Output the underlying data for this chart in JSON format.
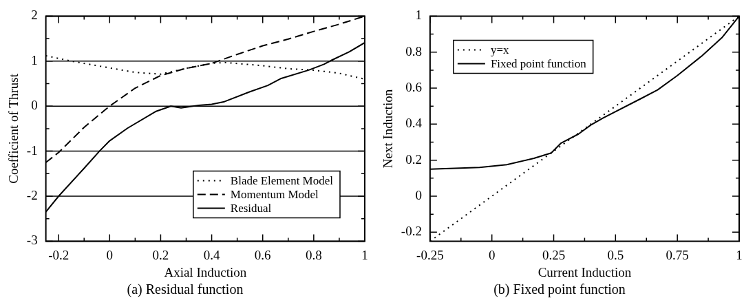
{
  "chart_data": [
    {
      "type": "line",
      "title": "(a) Residual function",
      "xlabel": "Axial Induction",
      "ylabel": "Coefficient of Thrust",
      "xlim": [
        -0.25,
        1
      ],
      "ylim": [
        -3,
        2
      ],
      "xticks": [
        -0.2,
        {
          "value": -0.1,
          "label": null
        },
        0,
        {
          "value": 0.1,
          "label": null
        },
        0.2,
        {
          "value": 0.3,
          "label": null
        },
        0.4,
        {
          "value": 0.5,
          "label": null
        },
        0.6,
        {
          "value": 0.7,
          "label": null
        },
        0.8,
        {
          "value": 0.9,
          "label": null
        },
        1
      ],
      "yticks": [
        -3,
        {
          "value": -2.5,
          "label": null
        },
        -2,
        {
          "value": -1.5,
          "label": null
        },
        -1,
        {
          "value": -0.5,
          "label": null
        },
        0,
        {
          "value": 0.5,
          "label": null
        },
        1,
        {
          "value": 1.5,
          "label": null
        },
        2
      ],
      "grid": "y",
      "legend": "bottom right",
      "marker": "none",
      "series": [
        {
          "name": "Blade Element Model",
          "color": "#000000",
          "line_style": "dotted",
          "x": [
            -0.25,
            -0.15,
            0,
            0.1,
            0.2,
            0.3,
            0.4,
            0.45,
            0.6,
            0.7,
            0.8,
            0.9,
            1
          ],
          "values": [
            1.12,
            1.0,
            0.85,
            0.75,
            0.71,
            0.84,
            0.95,
            0.97,
            0.9,
            0.83,
            0.8,
            0.73,
            0.6
          ]
        },
        {
          "name": "Momentum Model",
          "color": "#000000",
          "line_style": "dashed",
          "x": [
            -0.25,
            -0.2,
            -0.1,
            0,
            0.1,
            0.2,
            0.3,
            0.4,
            0.5,
            0.6,
            0.7,
            0.8,
            0.9,
            1
          ],
          "values": [
            -1.25,
            -1.03,
            -0.47,
            0,
            0.4,
            0.68,
            0.84,
            0.95,
            1.15,
            1.34,
            1.49,
            1.66,
            1.82,
            2
          ]
        },
        {
          "name": "Residual",
          "color": "#000000",
          "line_style": "solid",
          "x": [
            -0.25,
            -0.2,
            -0.1,
            -0.04,
            0,
            0.07,
            0.18,
            0.24,
            0.28,
            0.35,
            0.4,
            0.45,
            0.55,
            0.62,
            0.67,
            0.78,
            0.84,
            0.87,
            0.94,
            1
          ],
          "values": [
            -2.35,
            -2.0,
            -1.38,
            -1.0,
            -0.77,
            -0.49,
            -0.12,
            0,
            -0.04,
            0.02,
            0.04,
            0.1,
            0.32,
            0.46,
            0.61,
            0.8,
            0.93,
            1.02,
            1.21,
            1.41
          ]
        }
      ]
    },
    {
      "type": "line",
      "title": "(b) Fixed point function",
      "xlabel": "Current Induction",
      "ylabel": "Next Induction",
      "xlim": [
        -0.25,
        1
      ],
      "ylim": [
        -0.25,
        1
      ],
      "xticks": [
        -0.25,
        {
          "value": -0.125,
          "label": null
        },
        0,
        {
          "value": 0.125,
          "label": null
        },
        0.25,
        {
          "value": 0.375,
          "label": null
        },
        0.5,
        {
          "value": 0.625,
          "label": null
        },
        0.75,
        {
          "value": 0.875,
          "label": null
        },
        1
      ],
      "yticks": [
        -0.2,
        {
          "value": -0.1,
          "label": null
        },
        0,
        {
          "value": 0.1,
          "label": null
        },
        0.2,
        {
          "value": 0.3,
          "label": null
        },
        0.4,
        {
          "value": 0.5,
          "label": null
        },
        0.6,
        {
          "value": 0.7,
          "label": null
        },
        0.8,
        {
          "value": 0.9,
          "label": null
        },
        1
      ],
      "grid": false,
      "legend": "top left",
      "marker": "none",
      "series": [
        {
          "name": "y=x",
          "color": "#000000",
          "line_style": "dotted",
          "x": [
            -0.25,
            1
          ],
          "values": [
            -0.25,
            1
          ]
        },
        {
          "name": "Fixed point function",
          "color": "#000000",
          "line_style": "solid",
          "x": [
            -0.25,
            -0.05,
            0.06,
            0.17,
            0.24,
            0.28,
            0.35,
            0.4,
            0.45,
            0.6,
            0.67,
            0.75,
            0.85,
            0.93,
            1
          ],
          "values": [
            0.15,
            0.16,
            0.175,
            0.21,
            0.24,
            0.295,
            0.345,
            0.395,
            0.434,
            0.54,
            0.59,
            0.67,
            0.78,
            0.88,
            1
          ]
        }
      ]
    }
  ]
}
